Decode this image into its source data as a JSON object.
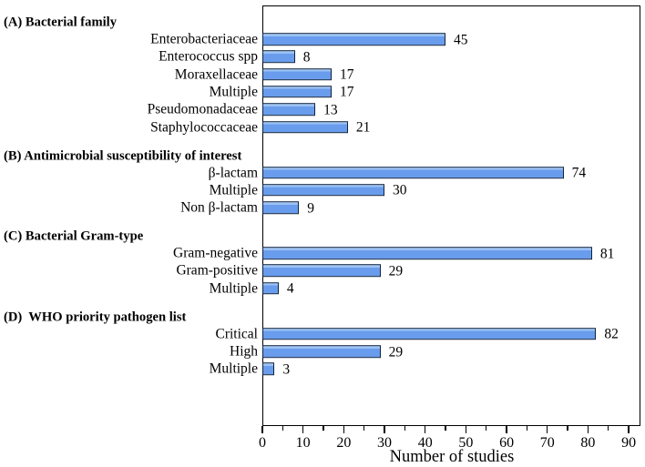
{
  "chart_data": {
    "type": "bar",
    "orientation": "horizontal",
    "title": "",
    "xlabel": "Number of studies",
    "ylabel": "",
    "xlim": [
      0,
      93
    ],
    "x_major_ticks": [
      0,
      10,
      20,
      30,
      40,
      50,
      60,
      70,
      80,
      90
    ],
    "x_minor_tick_step": 5,
    "grid": false,
    "legend": false,
    "value_labels_shown": true,
    "bar_color": "#699CEC",
    "bar_highlight_color": "#9cc2f5",
    "bar_border_color": "#10243E",
    "axis_color": "#000000",
    "groups": [
      {
        "label": "(A) Bacterial family",
        "bars": [
          {
            "label": "Enterobacteriaceae",
            "value": 45
          },
          {
            "label": "Enterococcus spp",
            "value": 8
          },
          {
            "label": "Moraxellaceae",
            "value": 17
          },
          {
            "label": "Multiple",
            "value": 17
          },
          {
            "label": "Pseudomonadaceae",
            "value": 13
          },
          {
            "label": "Staphylococcaceae",
            "value": 21
          }
        ]
      },
      {
        "label": "(B) Antimicrobial susceptibility of interest",
        "bars": [
          {
            "label": "β-lactam",
            "value": 74
          },
          {
            "label": "Multiple",
            "value": 30
          },
          {
            "label": "Non β-lactam",
            "value": 9
          }
        ]
      },
      {
        "label": "(C) Bacterial Gram-type",
        "bars": [
          {
            "label": "Gram-negative",
            "value": 81
          },
          {
            "label": "Gram-positive",
            "value": 29
          },
          {
            "label": "Multiple",
            "value": 4
          }
        ]
      },
      {
        "label": "(D)  WHO priority pathogen list",
        "bars": [
          {
            "label": "Critical",
            "value": 82
          },
          {
            "label": "High",
            "value": 29
          },
          {
            "label": "Multiple",
            "value": 3
          }
        ]
      }
    ]
  }
}
